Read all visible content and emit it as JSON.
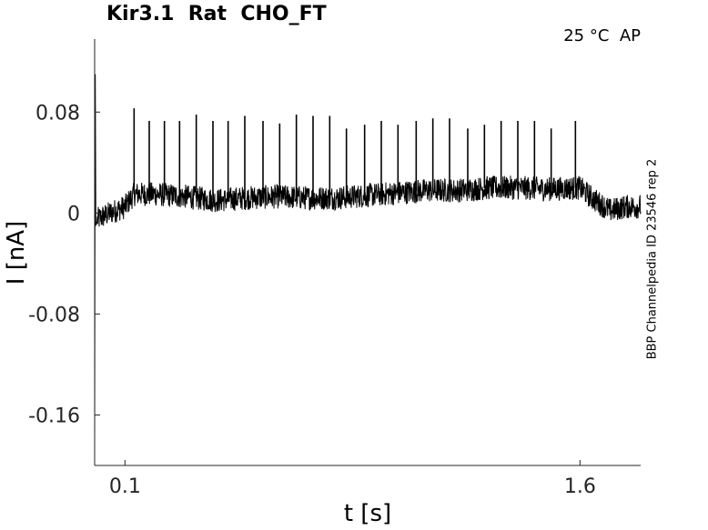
{
  "chart_data": {
    "type": "line",
    "title": "Kir3.1  Rat  CHO_FT",
    "condition": "25 °C  AP",
    "side_label": "BBP Channelpedia ID 23546 rep 2",
    "xlabel": "t [s]",
    "ylabel": "I [nA]",
    "xlim": [
      -0.0,
      1.8
    ],
    "ylim": [
      -0.2,
      0.14
    ],
    "x_ticks": [
      0.1,
      1.6
    ],
    "x_tick_labels": [
      "0.1",
      "1.6"
    ],
    "y_ticks": [
      0.08,
      0,
      -0.08,
      -0.16
    ],
    "y_tick_labels": [
      "0.08",
      "0",
      "-0.08",
      "-0.16"
    ],
    "grid": false,
    "legend": "none",
    "line_color": "#000000",
    "series": [
      {
        "x": [
          0.0,
          0.002,
          0.004,
          0.01,
          0.05,
          0.1,
          0.13,
          0.2,
          0.3,
          0.4,
          0.5,
          0.6,
          0.7,
          0.8,
          0.9,
          1.0,
          1.1,
          1.2,
          1.3,
          1.4,
          1.5,
          1.6,
          1.65,
          1.7,
          1.75,
          1.8
        ],
        "values": [
          -0.19,
          0.11,
          -0.01,
          -0.005,
          0.0,
          0.005,
          0.015,
          0.015,
          0.013,
          0.01,
          0.012,
          0.013,
          0.012,
          0.012,
          0.014,
          0.016,
          0.018,
          0.018,
          0.02,
          0.02,
          0.019,
          0.02,
          0.01,
          0.002,
          0.005,
          0.005
        ],
        "noise_amplitude": 0.012
      }
    ],
    "spikes": {
      "times": [
        0.13,
        0.18,
        0.23,
        0.28,
        0.335,
        0.39,
        0.44,
        0.495,
        0.555,
        0.61,
        0.665,
        0.72,
        0.775,
        0.83,
        0.89,
        0.945,
        1.0,
        1.06,
        1.115,
        1.17,
        1.23,
        1.285,
        1.34,
        1.395,
        1.45,
        1.505,
        1.585
      ],
      "peaks": [
        0.083,
        0.073,
        0.073,
        0.073,
        0.078,
        0.073,
        0.073,
        0.077,
        0.073,
        0.071,
        0.078,
        0.077,
        0.077,
        0.067,
        0.07,
        0.073,
        0.07,
        0.073,
        0.075,
        0.075,
        0.067,
        0.07,
        0.073,
        0.073,
        0.073,
        0.067,
        0.073
      ]
    }
  }
}
